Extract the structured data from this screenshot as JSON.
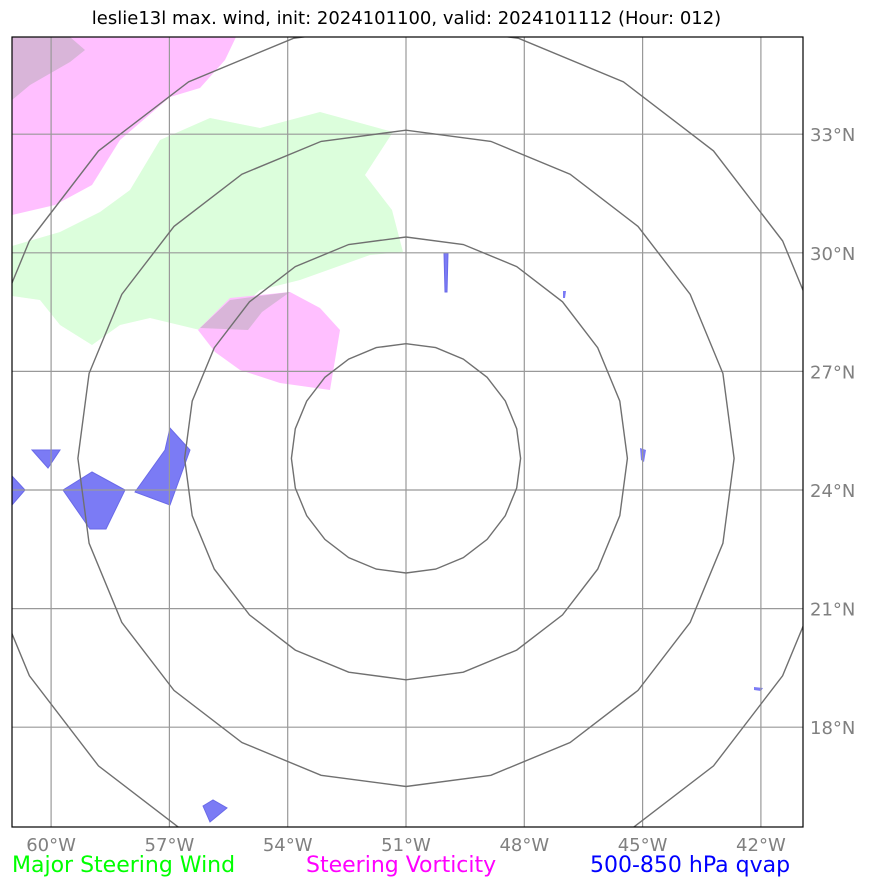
{
  "title": "leslie13l max. wind, init: 2024101100, valid: 2024101112 (Hour: 012)",
  "map": {
    "lon_range": [
      -61,
      -40.8
    ],
    "lat_range": [
      15.5,
      35.5
    ],
    "lat_ticks": [
      {
        "value": 33,
        "label": "33°N"
      },
      {
        "value": 30,
        "label": "30°N"
      },
      {
        "value": 27,
        "label": "27°N"
      },
      {
        "value": 24,
        "label": "24°N"
      },
      {
        "value": 21,
        "label": "21°N"
      },
      {
        "value": 18,
        "label": "18°N"
      }
    ],
    "lon_ticks": [
      {
        "value": -60,
        "label": "60°W"
      },
      {
        "value": -57,
        "label": "57°W"
      },
      {
        "value": -54,
        "label": "54°W"
      },
      {
        "value": -51,
        "label": "51°W"
      },
      {
        "value": -48,
        "label": "48°W"
      },
      {
        "value": -45,
        "label": "45°W"
      },
      {
        "value": -42,
        "label": "42°W"
      }
    ],
    "range_ring_center": {
      "lon": -51,
      "lat": 24.8
    },
    "range_ring_radii_deg_lat": [
      2.9,
      5.6,
      8.3,
      11.0
    ],
    "colors": {
      "steering_wind": "#00ff00",
      "steering_vorticity": "#ff00ff",
      "qvap": "#0000ff",
      "wind_fill": "#dcfedc",
      "vort_fill": "#ffbfff",
      "qvap_fill": "#7b7bf5"
    }
  },
  "legend": {
    "steering_wind": "Major Steering Wind",
    "steering_vorticity": "Steering Vorticity",
    "qvap": "500-850 hPa qvap"
  }
}
